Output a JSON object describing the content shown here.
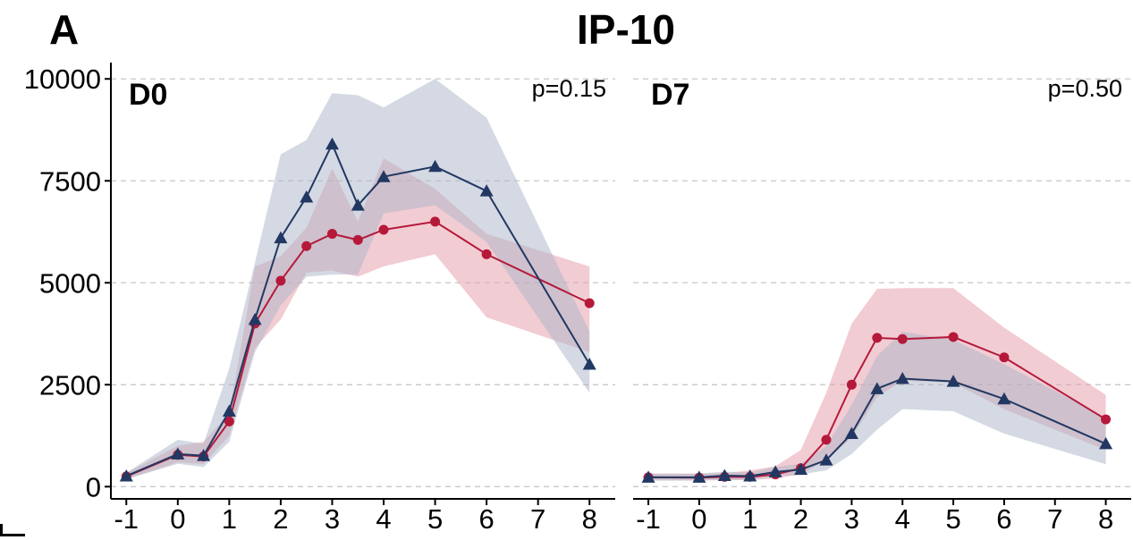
{
  "panel_letter": "A",
  "title": "IP-10",
  "chart_data": [
    {
      "type": "line",
      "panel_label": "D0",
      "pvalue_text": "p=0.15",
      "xlim": [
        -1.3,
        8.5
      ],
      "ylim": [
        -300,
        10400
      ],
      "x_ticks": [
        -1,
        0,
        1,
        2,
        3,
        4,
        5,
        6,
        7,
        8
      ],
      "y_ticks": [
        0,
        2500,
        5000,
        7500,
        10000
      ],
      "grid": "horizontal dashed",
      "series": [
        {
          "color": "#b5193a",
          "fill": "#e8a3ae",
          "marker": "circle",
          "x": [
            -1,
            0,
            0.5,
            1,
            1.5,
            2,
            2.5,
            3,
            3.5,
            4,
            5,
            6,
            8
          ],
          "y": [
            250,
            780,
            740,
            1600,
            4000,
            5050,
            5900,
            6200,
            6050,
            6300,
            6500,
            5700,
            4500
          ],
          "lower": [
            180,
            600,
            550,
            1250,
            3400,
            4100,
            5250,
            5300,
            5150,
            5400,
            5700,
            4150,
            3300
          ],
          "upper": [
            330,
            1000,
            1100,
            1800,
            5400,
            5650,
            6350,
            7800,
            6500,
            8050,
            7300,
            6200,
            5400
          ]
        },
        {
          "color": "#223862",
          "fill": "#a9b4c8",
          "marker": "triangle",
          "x": [
            -1,
            0,
            0.5,
            1,
            1.5,
            2,
            2.5,
            3,
            3.5,
            4,
            5,
            6,
            8
          ],
          "y": [
            260,
            800,
            760,
            1850,
            4100,
            6100,
            7100,
            8400,
            6900,
            7600,
            7850,
            7250,
            3000
          ],
          "lower": [
            180,
            560,
            480,
            1100,
            3300,
            4450,
            5150,
            5200,
            5200,
            6700,
            6900,
            6000,
            2300
          ],
          "upper": [
            340,
            1150,
            1050,
            2900,
            5500,
            8150,
            8500,
            9650,
            9600,
            9300,
            10000,
            9050,
            3800
          ]
        }
      ]
    },
    {
      "type": "line",
      "panel_label": "D7",
      "pvalue_text": "p=0.50",
      "xlim": [
        -1.3,
        8.5
      ],
      "ylim": [
        -300,
        10400
      ],
      "x_ticks": [
        -1,
        0,
        1,
        2,
        3,
        4,
        5,
        6,
        7,
        8
      ],
      "y_ticks": [
        0,
        2500,
        5000,
        7500,
        10000
      ],
      "grid": "horizontal dashed",
      "series": [
        {
          "color": "#b5193a",
          "fill": "#e8a3ae",
          "marker": "circle",
          "x": [
            -1,
            0,
            0.5,
            1,
            1.5,
            2,
            2.5,
            3,
            3.5,
            4,
            5,
            6,
            8
          ],
          "y": [
            230,
            220,
            240,
            240,
            300,
            450,
            1150,
            2500,
            3650,
            3620,
            3670,
            3170,
            1650
          ],
          "lower": [
            150,
            150,
            160,
            160,
            200,
            300,
            650,
            1200,
            2200,
            2600,
            2550,
            1900,
            900
          ],
          "upper": [
            320,
            320,
            330,
            400,
            500,
            900,
            2300,
            4000,
            4850,
            4870,
            4870,
            3900,
            2250
          ]
        },
        {
          "color": "#223862",
          "fill": "#a9b4c8",
          "marker": "triangle",
          "x": [
            -1,
            0,
            0.5,
            1,
            1.5,
            2,
            2.5,
            3,
            3.5,
            4,
            5,
            6,
            8
          ],
          "y": [
            230,
            230,
            270,
            260,
            360,
            420,
            650,
            1300,
            2400,
            2650,
            2580,
            2150,
            1050
          ],
          "lower": [
            150,
            150,
            170,
            170,
            250,
            300,
            400,
            800,
            1400,
            1900,
            1850,
            1300,
            550
          ],
          "upper": [
            320,
            320,
            370,
            350,
            480,
            560,
            1000,
            2000,
            3200,
            3800,
            3600,
            3000,
            1700
          ]
        }
      ]
    }
  ]
}
